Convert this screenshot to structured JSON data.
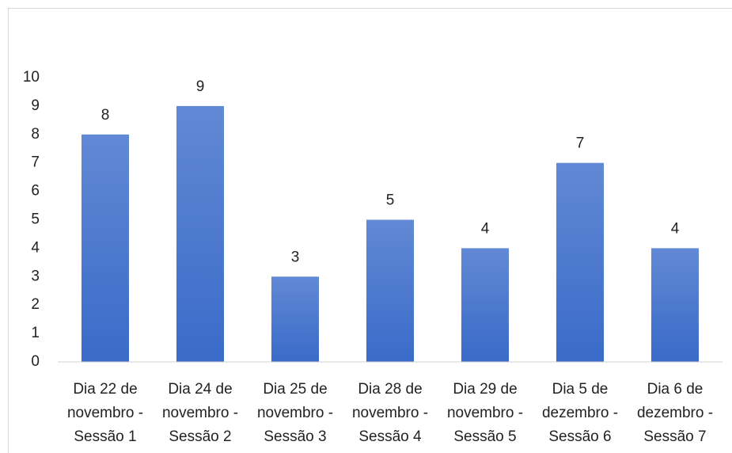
{
  "chart_data": {
    "type": "bar",
    "categories": [
      "Dia 22 de novembro - Sessão 1",
      "Dia 24 de novembro - Sessão 2",
      "Dia 25 de novembro - Sessão 3",
      "Dia 28 de novembro - Sessão 4",
      "Dia 29 de novembro - Sessão 5",
      "Dia 5 de dezembro - Sessão 6",
      "Dia 6 de dezembro - Sessão 7"
    ],
    "values": [
      8,
      9,
      3,
      5,
      4,
      7,
      4
    ],
    "color": "#3a6bc9",
    "ylim": [
      0,
      10
    ],
    "yticks": [
      0,
      1,
      2,
      3,
      4,
      5,
      6,
      7,
      8,
      9,
      10
    ],
    "grid": false
  }
}
